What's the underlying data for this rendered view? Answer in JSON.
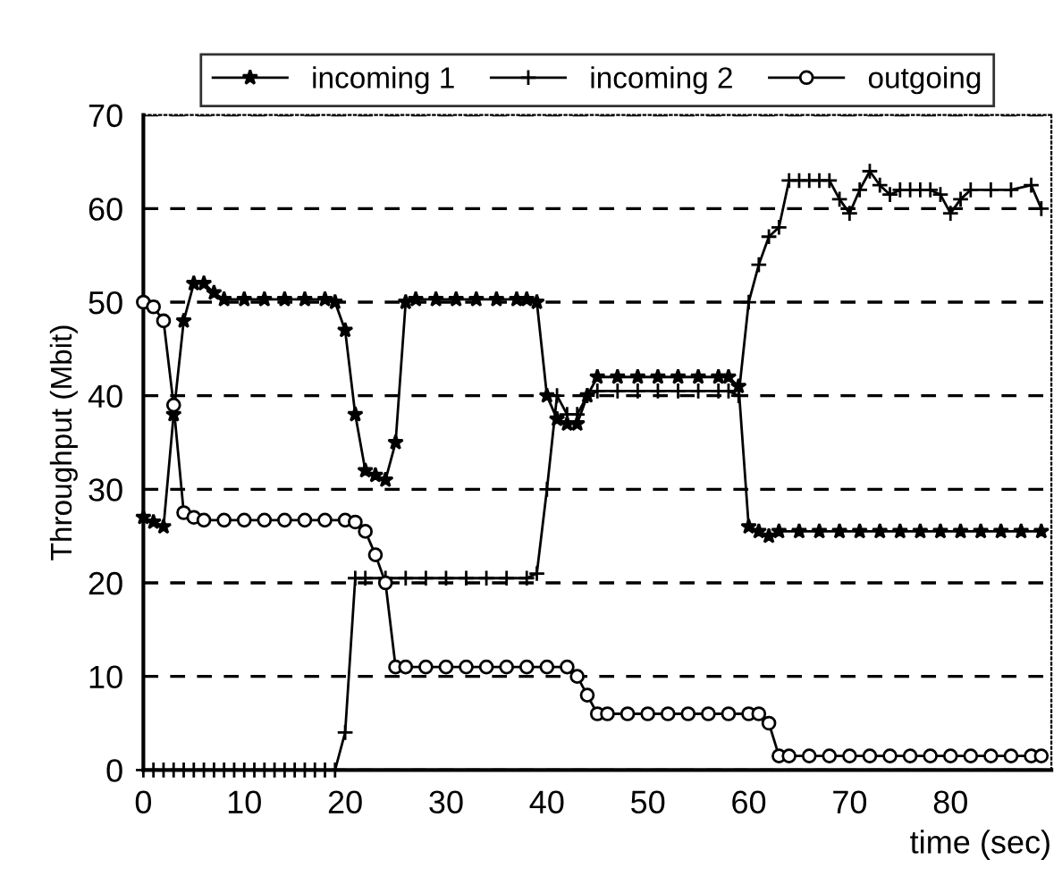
{
  "chart_data": {
    "type": "line",
    "xlabel": "time (sec)",
    "ylabel": "Throughput (Mbit)",
    "xlim": [
      0,
      90
    ],
    "xticks": [
      0,
      10,
      20,
      30,
      40,
      50,
      60,
      70,
      80
    ],
    "ylim": [
      0,
      70
    ],
    "yticks": [
      0,
      10,
      20,
      30,
      40,
      50,
      60,
      70
    ],
    "grid": "y",
    "legend": "top",
    "line_style": "solid",
    "series": [
      {
        "name": "incoming 1",
        "color": "#000000",
        "marker": "star",
        "x": [
          0,
          1,
          2,
          3,
          4,
          5,
          6,
          7,
          8,
          10,
          12,
          14,
          16,
          18,
          19,
          20,
          21,
          22,
          23,
          24,
          25,
          26,
          27,
          29,
          31,
          33,
          35,
          37,
          38,
          39,
          40,
          41,
          42,
          43,
          44,
          45,
          47,
          49,
          51,
          53,
          55,
          57,
          58,
          59,
          60,
          61,
          62,
          63,
          65,
          67,
          69,
          71,
          73,
          75,
          77,
          79,
          81,
          83,
          85,
          87,
          89
        ],
        "values": [
          27,
          26.5,
          26,
          38,
          48,
          52,
          52,
          51,
          50.3,
          50.3,
          50.3,
          50.3,
          50.3,
          50.3,
          50,
          47,
          38,
          32,
          31.5,
          31,
          35,
          50,
          50.3,
          50.3,
          50.3,
          50.3,
          50.3,
          50.3,
          50.3,
          50,
          40,
          37.5,
          37,
          37,
          40,
          42,
          42,
          42,
          42,
          42,
          42,
          42,
          42,
          41,
          26,
          25.5,
          25,
          25.5,
          25.5,
          25.5,
          25.5,
          25.5,
          25.5,
          25.5,
          25.5,
          25.5,
          25.5,
          25.5,
          25.5,
          25.5,
          25.5
        ]
      },
      {
        "name": "incoming 2",
        "color": "#000000",
        "marker": "cross",
        "x": [
          0,
          1,
          2,
          3,
          4,
          5,
          6,
          7,
          8,
          9,
          10,
          11,
          12,
          13,
          14,
          15,
          16,
          17,
          18,
          19,
          20,
          21,
          22,
          24,
          26,
          28,
          30,
          32,
          34,
          36,
          38,
          39,
          40,
          41,
          42,
          43,
          44,
          45,
          47,
          49,
          51,
          53,
          55,
          57,
          58,
          59,
          60,
          61,
          62,
          63,
          64,
          65,
          66,
          67,
          68,
          69,
          70,
          71,
          72,
          73,
          74,
          75,
          76,
          77,
          78,
          79,
          80,
          81,
          82,
          84,
          86,
          88,
          89
        ],
        "values": [
          0,
          0,
          0,
          0,
          0,
          0,
          0,
          0,
          0,
          0,
          0,
          0,
          0,
          0,
          0,
          0,
          0,
          0,
          0,
          0,
          4,
          20.5,
          20.5,
          20.5,
          20.5,
          20.5,
          20.5,
          20.5,
          20.5,
          20.5,
          20.5,
          21,
          30,
          40,
          38,
          38,
          40,
          40.5,
          40.5,
          40.5,
          40.5,
          40.5,
          40.5,
          40.5,
          40.5,
          40,
          50,
          54,
          57,
          58,
          63,
          63,
          63,
          63,
          63,
          61,
          59.5,
          62,
          64,
          62.5,
          61.5,
          62,
          62,
          62,
          62,
          61.5,
          59.5,
          61,
          62,
          62,
          62,
          62.5,
          60
        ]
      },
      {
        "name": "outgoing",
        "color": "#000000",
        "marker": "circle",
        "x": [
          0,
          1,
          2,
          3,
          4,
          5,
          6,
          8,
          10,
          12,
          14,
          16,
          18,
          20,
          21,
          22,
          23,
          24,
          25,
          26,
          28,
          30,
          32,
          34,
          36,
          38,
          40,
          42,
          43,
          44,
          45,
          46,
          48,
          50,
          52,
          54,
          56,
          58,
          60,
          61,
          62,
          63,
          64,
          66,
          68,
          70,
          72,
          74,
          76,
          78,
          80,
          82,
          84,
          86,
          88,
          89
        ],
        "values": [
          50,
          49.5,
          48,
          39,
          27.5,
          27,
          26.7,
          26.7,
          26.7,
          26.7,
          26.7,
          26.7,
          26.7,
          26.7,
          26.5,
          25.5,
          23,
          20,
          11,
          11,
          11,
          11,
          11,
          11,
          11,
          11,
          11,
          11,
          10,
          8,
          6,
          6,
          6,
          6,
          6,
          6,
          6,
          6,
          6,
          6,
          5,
          1.5,
          1.5,
          1.5,
          1.5,
          1.5,
          1.5,
          1.5,
          1.5,
          1.5,
          1.5,
          1.5,
          1.5,
          1.5,
          1.5,
          1.5
        ]
      }
    ]
  }
}
